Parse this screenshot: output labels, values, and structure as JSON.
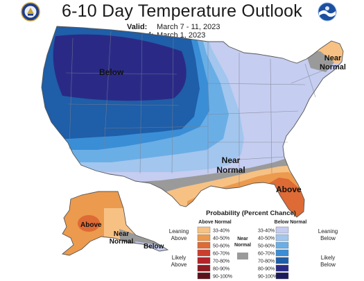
{
  "header": {
    "title": "6-10 Day Temperature Outlook",
    "valid_label": "Valid:",
    "valid_value": "March 7 - 11, 2023",
    "issued_label": "Issued:",
    "issued_value": "March 1, 2023"
  },
  "icons": {
    "left_logo": "doc-seal-icon",
    "right_logo": "noaa-logo-icon"
  },
  "map": {
    "labels": {
      "below_main": "Below",
      "near_normal_ne": "Near\nNormal",
      "near_normal_south": "Near\nNormal",
      "above_se": "Above",
      "above_ak": "Above",
      "near_normal_ak": "Near\nNormal",
      "below_ak": "Below"
    }
  },
  "legend": {
    "title": "Probability (Percent Chance)",
    "above_header": "Above Normal",
    "below_header": "Below Normal",
    "near_normal_label": "Near\nNormal",
    "leaning_above": "Leaning\nAbove",
    "likely_above": "Likely\nAbove",
    "leaning_below": "Leaning\nBelow",
    "likely_below": "Likely\nBelow",
    "above_bins": [
      {
        "range": "33-40%",
        "color": "#f7c184"
      },
      {
        "range": "40-50%",
        "color": "#ec9a4d"
      },
      {
        "range": "50-60%",
        "color": "#de6a36"
      },
      {
        "range": "60-70%",
        "color": "#cd3d2d"
      },
      {
        "range": "70-80%",
        "color": "#b5232a"
      },
      {
        "range": "80-90%",
        "color": "#8e1a22"
      },
      {
        "range": "90-100%",
        "color": "#5c1118"
      }
    ],
    "below_bins": [
      {
        "range": "33-40%",
        "color": "#c5cdf0"
      },
      {
        "range": "40-50%",
        "color": "#a2c6ee"
      },
      {
        "range": "50-60%",
        "color": "#6aaee6"
      },
      {
        "range": "60-70%",
        "color": "#3a8ed6"
      },
      {
        "range": "70-80%",
        "color": "#1f5ea8"
      },
      {
        "range": "80-90%",
        "color": "#2a2a86"
      },
      {
        "range": "90-100%",
        "color": "#1a1a5c"
      }
    ],
    "near_normal_color": "#9a9a9a"
  }
}
